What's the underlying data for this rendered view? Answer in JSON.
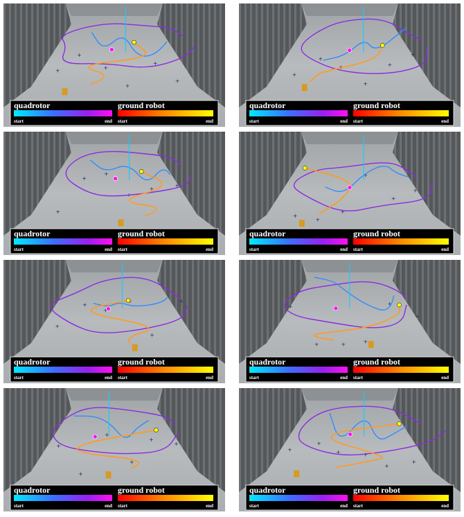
{
  "panels": [
    {
      "quadrotor": {
        "label": "quadrotor",
        "start": "start",
        "end": "end"
      },
      "ground_robot": {
        "label": "ground robot",
        "start": "start",
        "end": "end"
      }
    },
    {
      "quadrotor": {
        "label": "quadrotor",
        "start": "start",
        "end": "end"
      },
      "ground_robot": {
        "label": "ground robot",
        "start": "start",
        "end": "end"
      }
    },
    {
      "quadrotor": {
        "label": "quadrotor",
        "start": "start",
        "end": "end"
      },
      "ground_robot": {
        "label": "ground robot",
        "start": "start",
        "end": "end"
      }
    },
    {
      "quadrotor": {
        "label": "quadrotor",
        "start": "start",
        "end": "end"
      },
      "ground_robot": {
        "label": "ground robot",
        "start": "start",
        "end": "end"
      }
    },
    {
      "quadrotor": {
        "label": "quadrotor",
        "start": "start",
        "end": "end"
      },
      "ground_robot": {
        "label": "ground robot",
        "start": "start",
        "end": "end"
      }
    },
    {
      "quadrotor": {
        "label": "quadrotor",
        "start": "start",
        "end": "end"
      },
      "ground_robot": {
        "label": "ground robot",
        "start": "start",
        "end": "end"
      }
    },
    {
      "quadrotor": {
        "label": "quadrotor",
        "start": "start",
        "end": "end"
      },
      "ground_robot": {
        "label": "ground robot",
        "start": "start",
        "end": "end"
      }
    },
    {
      "quadrotor": {
        "label": "quadrotor",
        "start": "start",
        "end": "end"
      },
      "ground_robot": {
        "label": "ground robot",
        "start": "start",
        "end": "end"
      }
    }
  ]
}
